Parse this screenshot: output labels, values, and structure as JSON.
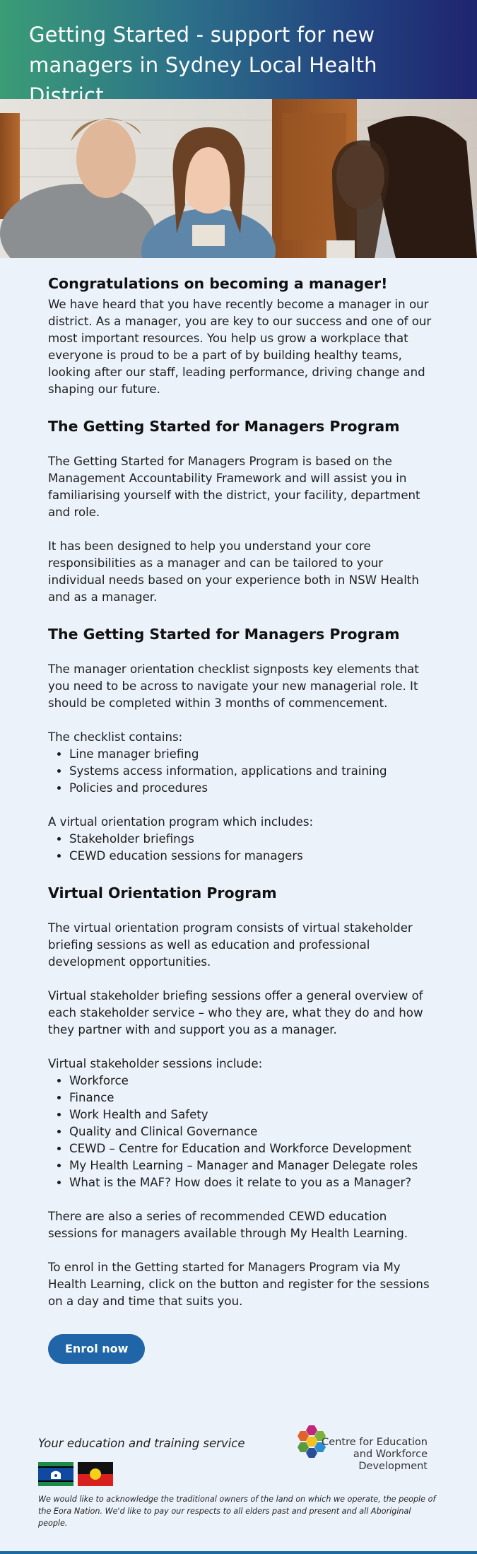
{
  "header": {
    "title": "Getting Started - support for new managers in Sydney Local Health District"
  },
  "intro": {
    "heading": "Congratulations on becoming a manager!",
    "body": "We have heard that you have recently become a manager in our district. As a manager, you are key to our success and one of our most important resources. You help us grow a workplace that everyone is proud to be a part of by building healthy teams, looking after our staff, leading performance, driving change and shaping our future."
  },
  "program": {
    "heading": "The Getting Started for Managers Program",
    "para1": "The Getting Started for Managers Program is based on the Management Accountability Framework and will assist you in familiarising yourself with the district, your facility, department and role.",
    "para2": "It has been designed to help you understand your core responsibilities as a manager and can be tailored to your individual needs based on your experience both in NSW Health and as a manager."
  },
  "checklist": {
    "heading": "The Getting Started for Managers Program",
    "para1": "The manager orientation checklist signposts key elements that you need to be across to navigate your new managerial role. It should be completed within 3 months of commencement.",
    "contains_label": "The checklist contains:",
    "items": [
      "Line manager briefing",
      "Systems access information, applications and training",
      "Policies and procedures"
    ],
    "virtual_label": "A virtual orientation program which includes:",
    "virtual_items": [
      "Stakeholder briefings",
      "CEWD education sessions for managers"
    ]
  },
  "virtual": {
    "heading": "Virtual Orientation Program",
    "para1": "The virtual orientation program consists of virtual stakeholder briefing sessions as well as education and professional development opportunities.",
    "para2": "Virtual stakeholder briefing sessions offer a general overview of each stakeholder service – who they are, what they do and how they partner with and support you as a manager.",
    "sessions_label": "Virtual stakeholder sessions include:",
    "sessions": [
      "Workforce",
      "Finance",
      "Work Health and Safety",
      "Quality and Clinical Governance",
      "CEWD – Centre for Education and Workforce Development",
      "My Health Learning – Manager and Manager Delegate roles",
      "What is the MAF? How does it relate to you as a Manager?"
    ],
    "para3": "There are also a series of recommended CEWD education sessions for managers available through My Health Learning.",
    "para4": "To enrol in the Getting started for Managers Program via My Health Learning, click on the button and register for the sessions on a day and time that suits you.",
    "enrol_label": "Enrol now"
  },
  "footer": {
    "tagline": "Your education and training service",
    "logo_line1": "Centre for Education",
    "logo_line2": "and Workforce Development",
    "acknowledgement": "We would like to acknowledge the traditional owners of the land on which we operate, the people of the Eora Nation. We'd like to pay our respects to all elders past and present and all Aboriginal people."
  },
  "colors": {
    "accent": "#2065a8",
    "background": "#ecf2fa",
    "header_start": "#3a9c76",
    "header_end": "#1f2470"
  }
}
